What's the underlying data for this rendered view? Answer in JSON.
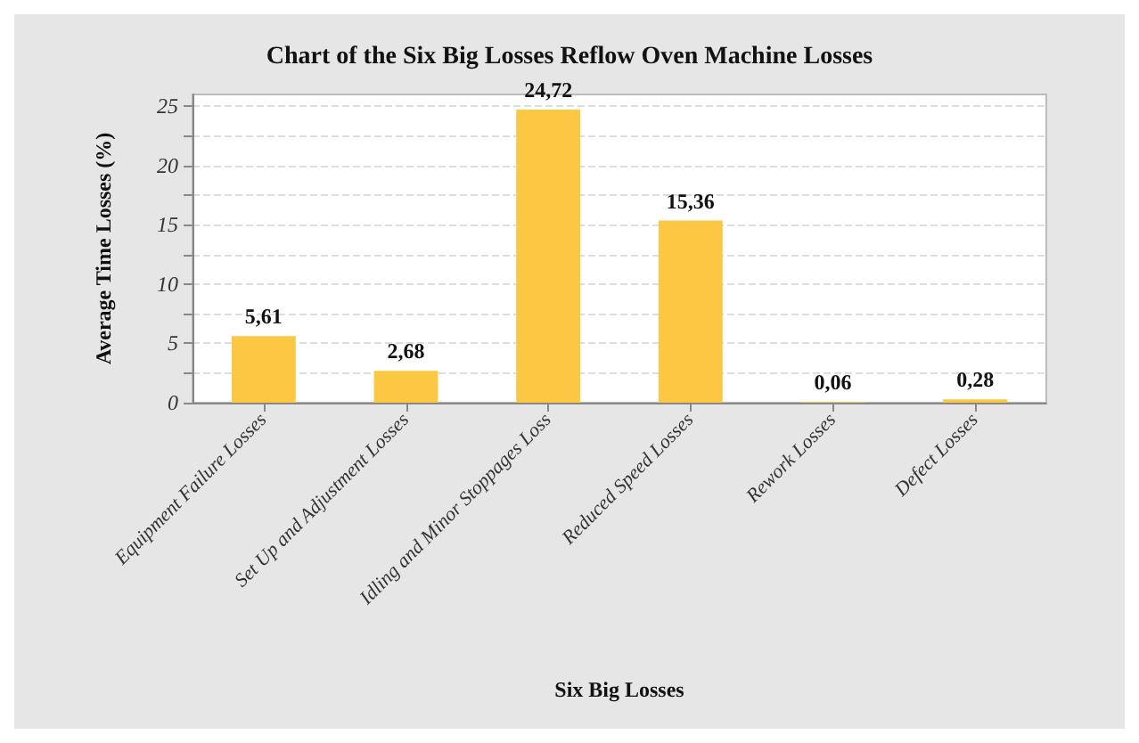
{
  "chart_data": {
    "type": "bar",
    "title": "Chart of the Six Big Losses Reflow Oven Machine Losses",
    "xlabel": "Six Big Losses",
    "ylabel": "Average Time Losses (%)",
    "categories": [
      "Equipment Failure Losses",
      "Set Up and Adjustment Losses",
      "Idling and Minor Stoppages Loss",
      "Reduced Speed Losses",
      "Rework Losses",
      "Defect Losses"
    ],
    "values": [
      5.61,
      2.68,
      24.72,
      15.36,
      0.06,
      0.28
    ],
    "value_labels": [
      "5,61",
      "2,68",
      "24,72",
      "15,36",
      "0,06",
      "0,28"
    ],
    "color": "#fcc844",
    "ylim": [
      0,
      26
    ],
    "yticks": [
      0,
      {
        "value": 2.5,
        "label": null
      },
      5,
      {
        "value": 7.5,
        "label": null
      },
      10,
      {
        "value": 12.5,
        "label": null
      },
      15,
      {
        "value": 17.5,
        "label": null
      },
      20,
      {
        "value": 22.5,
        "label": null
      },
      25
    ],
    "grid": "y"
  }
}
